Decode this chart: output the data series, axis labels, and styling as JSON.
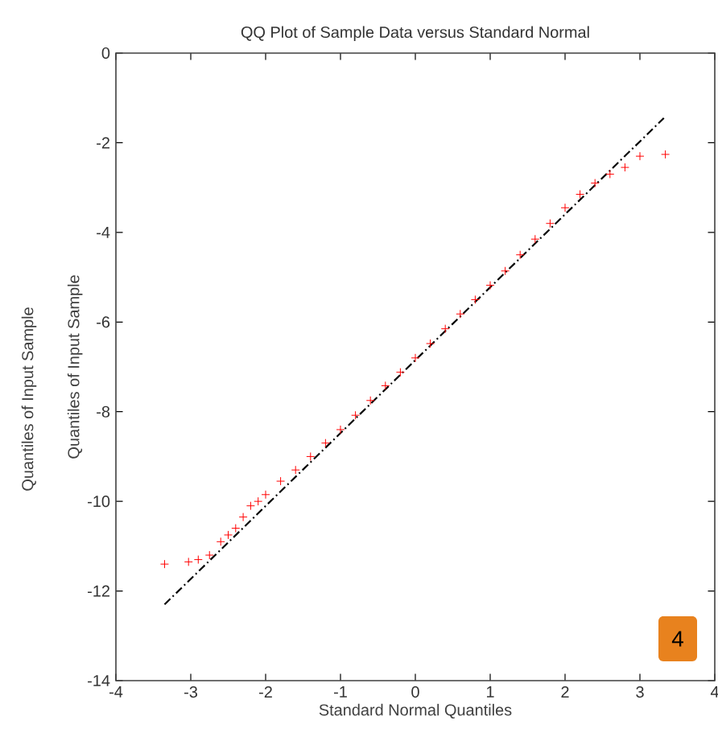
{
  "chart_data": {
    "type": "scatter",
    "title": "QQ Plot of Sample Data versus Standard Normal",
    "xlabel": "Standard Normal Quantiles",
    "ylabel": "Quantiles of Input Sample",
    "annotations": [
      "Quantiles of Input Sample",
      "4"
    ],
    "xlim": [
      -4,
      4
    ],
    "ylim": [
      -14,
      0
    ],
    "xticks": [
      -4,
      -3,
      -2,
      -1,
      0,
      1,
      2,
      3,
      4
    ],
    "yticks": [
      -14,
      -12,
      -10,
      -8,
      -6,
      -4,
      -2,
      0
    ],
    "series": [
      {
        "marker": "cross",
        "color": "#ff0000",
        "x": [
          -3.35,
          -3.03,
          -2.9,
          -2.75,
          -2.6,
          -2.5,
          -2.4,
          -2.3,
          -2.2,
          -2.1,
          -2.0,
          -1.8,
          -1.6,
          -1.4,
          -1.2,
          -1.0,
          -0.8,
          -0.6,
          -0.4,
          -0.2,
          0,
          0.2,
          0.4,
          0.6,
          0.8,
          1.0,
          1.2,
          1.4,
          1.6,
          1.8,
          2.0,
          2.2,
          2.4,
          2.6,
          2.8,
          3.0,
          3.34
        ],
        "values": [
          -11.4,
          -11.35,
          -11.3,
          -11.2,
          -10.9,
          -10.75,
          -10.6,
          -10.35,
          -10.1,
          -10.0,
          -9.85,
          -9.55,
          -9.3,
          -9.0,
          -8.7,
          -8.4,
          -8.08,
          -7.75,
          -7.42,
          -7.12,
          -6.8,
          -6.48,
          -6.15,
          -5.82,
          -5.5,
          -5.18,
          -4.86,
          -4.5,
          -4.15,
          -3.8,
          -3.45,
          -3.15,
          -2.9,
          -2.7,
          -2.55,
          -2.3,
          -2.26
        ]
      },
      {
        "type": "line",
        "line_style": "dashed",
        "marker": "none",
        "color": "#000000",
        "x": [
          -3.35,
          3.32
        ],
        "values": [
          -12.3,
          -1.45
        ]
      }
    ]
  }
}
